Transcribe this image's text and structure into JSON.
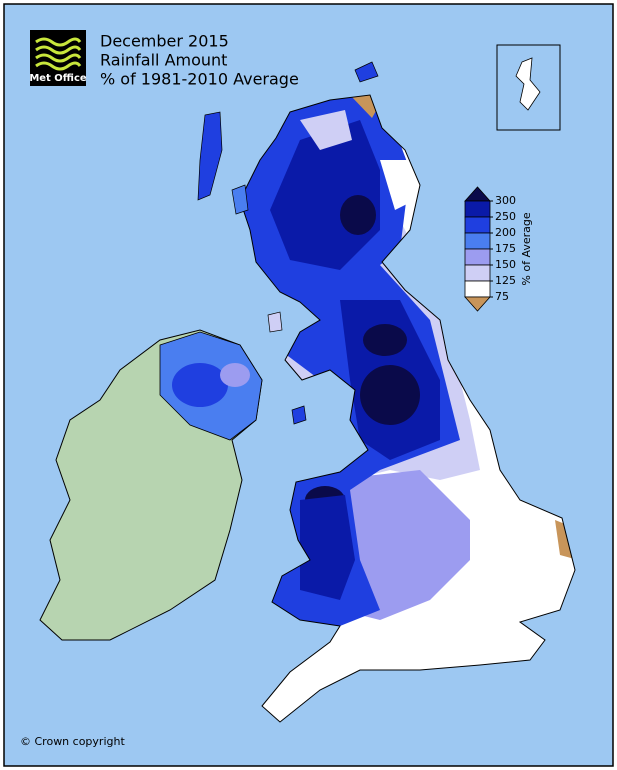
{
  "header": {
    "logo": "Met Office",
    "title_lines": [
      "December 2015",
      "Rainfall Amount",
      "% of 1981-2010 Average"
    ]
  },
  "legend": {
    "label": "% of Average",
    "ticks": [
      300,
      250,
      200,
      175,
      150,
      125,
      75
    ],
    "colors": [
      "#0a0a4a",
      "#0a1aa8",
      "#1f3fe0",
      "#4a7ef0",
      "#9c9cf0",
      "#cfcff5",
      "#ffffff",
      "#c8955a"
    ]
  },
  "footer": {
    "copyright": "© Crown copyright"
  }
}
